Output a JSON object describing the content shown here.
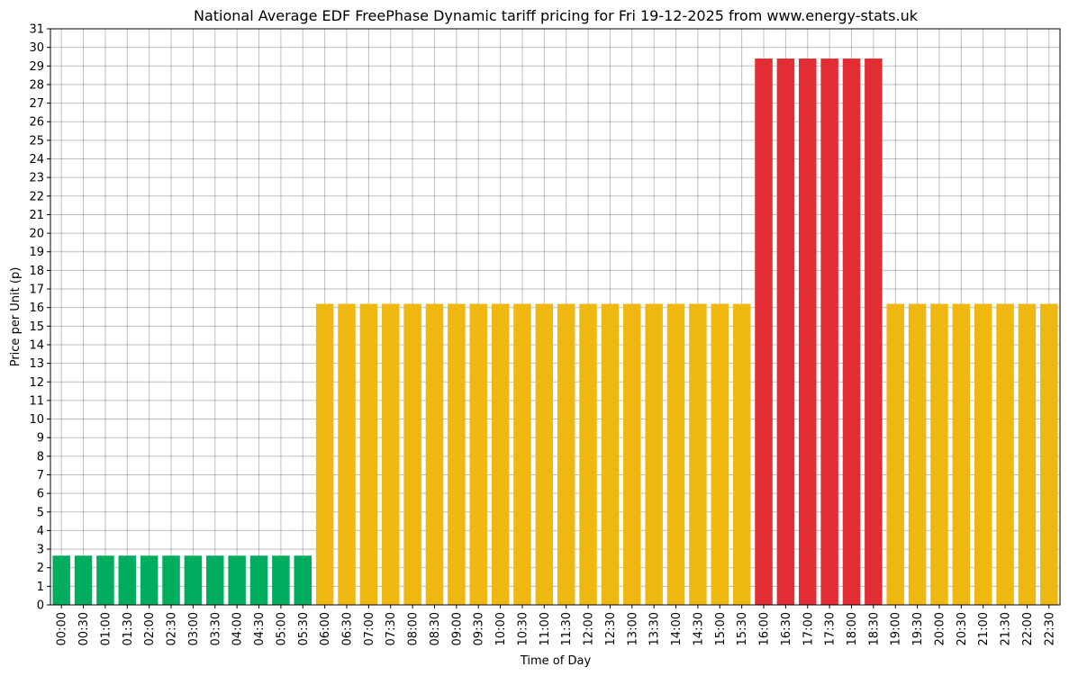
{
  "chart_data": {
    "type": "bar",
    "title": "National Average EDF FreePhase Dynamic tariff pricing for Fri 19-12-2025 from www.energy-stats.uk",
    "xlabel": "Time of Day",
    "ylabel": "Price per Unit (p)",
    "ylim": [
      0,
      31
    ],
    "grid": true,
    "categories": [
      "00:00",
      "00:30",
      "01:00",
      "01:30",
      "02:00",
      "02:30",
      "03:00",
      "03:30",
      "04:00",
      "04:30",
      "05:00",
      "05:30",
      "06:00",
      "06:30",
      "07:00",
      "07:30",
      "08:00",
      "08:30",
      "09:00",
      "09:30",
      "10:00",
      "10:30",
      "11:00",
      "11:30",
      "12:00",
      "12:30",
      "13:00",
      "13:30",
      "14:00",
      "14:30",
      "15:00",
      "15:30",
      "16:00",
      "16:30",
      "17:00",
      "17:30",
      "18:00",
      "18:30",
      "19:00",
      "19:30",
      "20:00",
      "20:30",
      "21:00",
      "21:30",
      "22:00",
      "22:30"
    ],
    "values": [
      2.65,
      2.65,
      2.65,
      2.65,
      2.65,
      2.65,
      2.65,
      2.65,
      2.65,
      2.65,
      2.65,
      2.65,
      16.2,
      16.2,
      16.2,
      16.2,
      16.2,
      16.2,
      16.2,
      16.2,
      16.2,
      16.2,
      16.2,
      16.2,
      16.2,
      16.2,
      16.2,
      16.2,
      16.2,
      16.2,
      16.2,
      16.2,
      29.4,
      29.4,
      29.4,
      29.4,
      29.4,
      29.4,
      16.2,
      16.2,
      16.2,
      16.2,
      16.2,
      16.2,
      16.2,
      16.2
    ],
    "bar_colors": [
      "#00ad5f",
      "#00ad5f",
      "#00ad5f",
      "#00ad5f",
      "#00ad5f",
      "#00ad5f",
      "#00ad5f",
      "#00ad5f",
      "#00ad5f",
      "#00ad5f",
      "#00ad5f",
      "#00ad5f",
      "#efb810",
      "#efb810",
      "#efb810",
      "#efb810",
      "#efb810",
      "#efb810",
      "#efb810",
      "#efb810",
      "#efb810",
      "#efb810",
      "#efb810",
      "#efb810",
      "#efb810",
      "#efb810",
      "#efb810",
      "#efb810",
      "#efb810",
      "#efb810",
      "#efb810",
      "#efb810",
      "#e12d33",
      "#e12d33",
      "#e12d33",
      "#e12d33",
      "#e12d33",
      "#e12d33",
      "#efb810",
      "#efb810",
      "#efb810",
      "#efb810",
      "#efb810",
      "#efb810",
      "#efb810",
      "#efb810"
    ],
    "yticks": [
      "0",
      "1",
      "2",
      "3",
      "4",
      "5",
      "6",
      "7",
      "8",
      "9",
      "10",
      "11",
      "12",
      "13",
      "14",
      "15",
      "16",
      "17",
      "18",
      "19",
      "20",
      "21",
      "22",
      "23",
      "24",
      "25",
      "26",
      "27",
      "28",
      "29",
      "30",
      "31"
    ]
  }
}
